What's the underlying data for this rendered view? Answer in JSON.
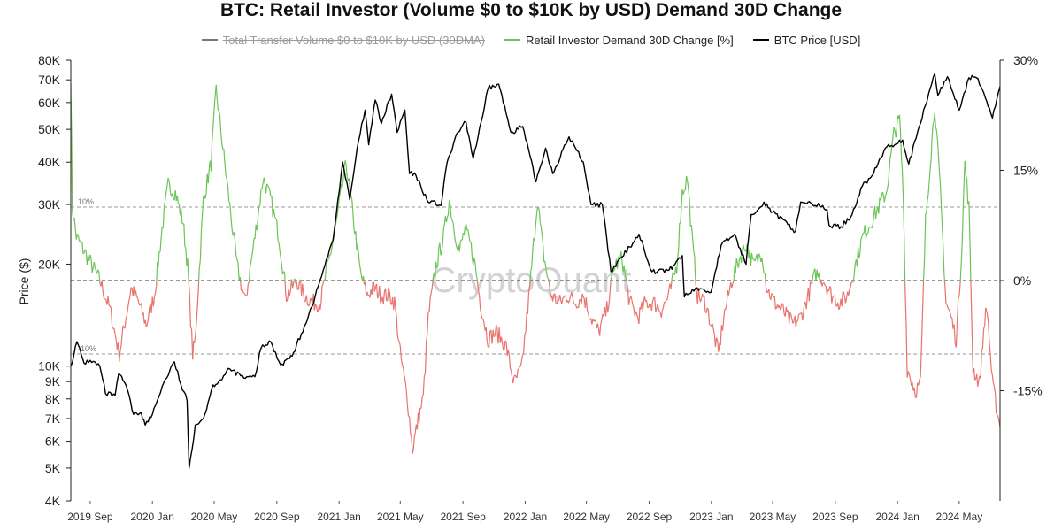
{
  "chart_data": {
    "type": "line",
    "title": "BTC: Retail Investor (Volume $0 to $10K by USD) Demand 30D Change",
    "watermark": "CryptoQuant",
    "y_left_label": "Price ($)",
    "y_left_scale": "log",
    "y_left_range": [
      4000,
      80000
    ],
    "y_left_ticks": [
      "80K",
      "70K",
      "60K",
      "50K",
      "40K",
      "30K",
      "20K",
      "10K",
      "9K",
      "8K",
      "7K",
      "6K",
      "5K",
      "4K"
    ],
    "y_left_tick_values": [
      80000,
      70000,
      60000,
      50000,
      40000,
      30000,
      20000,
      10000,
      9000,
      8000,
      7000,
      6000,
      5000,
      4000
    ],
    "y_right_range": [
      -30,
      30
    ],
    "y_right_ticks": [
      "30%",
      "15%",
      "0%",
      "-15%"
    ],
    "y_right_tick_values": [
      30,
      15,
      0,
      -15
    ],
    "reference_lines": [
      {
        "value": 10,
        "label": "10%"
      },
      {
        "value": 0,
        "label": ""
      },
      {
        "value": -10,
        "label": "-10%"
      }
    ],
    "x_range": [
      "2019-07-25",
      "2024-07-20"
    ],
    "x_ticks": [
      "2019 Sep",
      "2020 Jan",
      "2020 May",
      "2020 Sep",
      "2021 Jan",
      "2021 May",
      "2021 Sep",
      "2022 Jan",
      "2022 May",
      "2022 Sep",
      "2023 Jan",
      "2023 May",
      "2023 Sep",
      "2024 Jan",
      "2024 May"
    ],
    "x_tick_dates": [
      "2019-09-01",
      "2020-01-01",
      "2020-05-01",
      "2020-09-01",
      "2021-01-01",
      "2021-05-01",
      "2021-09-01",
      "2022-01-01",
      "2022-05-01",
      "2022-09-01",
      "2023-01-01",
      "2023-05-01",
      "2023-09-01",
      "2024-01-01",
      "2024-05-01"
    ],
    "legend_placement": "top-center",
    "legend": [
      {
        "label": "Total Transfer Volume $0 to $10K by USD (30DMA)",
        "color": "#777777",
        "disabled": true
      },
      {
        "label": "Retail Investor Demand 30D Change [%]",
        "color": "#6cc358"
      },
      {
        "label": "BTC Price [USD]",
        "color": "#000000"
      }
    ],
    "colors": {
      "positive": "#6cc358",
      "negative": "#e8736c",
      "price": "#000000"
    },
    "series": [
      {
        "name": "BTC Price [USD]",
        "axis": "left",
        "points": [
          [
            "2019-07-25",
            10000
          ],
          [
            "2019-08-06",
            11800
          ],
          [
            "2019-08-20",
            10200
          ],
          [
            "2019-09-01",
            10400
          ],
          [
            "2019-09-20",
            10000
          ],
          [
            "2019-10-01",
            8300
          ],
          [
            "2019-10-20",
            8200
          ],
          [
            "2019-10-27",
            9500
          ],
          [
            "2019-11-10",
            8800
          ],
          [
            "2019-11-25",
            7200
          ],
          [
            "2019-12-10",
            7300
          ],
          [
            "2019-12-18",
            6700
          ],
          [
            "2020-01-01",
            7200
          ],
          [
            "2020-01-20",
            8700
          ],
          [
            "2020-02-13",
            10300
          ],
          [
            "2020-02-26",
            8800
          ],
          [
            "2020-03-09",
            7900
          ],
          [
            "2020-03-13",
            5000
          ],
          [
            "2020-03-25",
            6700
          ],
          [
            "2020-04-10",
            7000
          ],
          [
            "2020-04-29",
            8800
          ],
          [
            "2020-05-10",
            9000
          ],
          [
            "2020-06-01",
            9800
          ],
          [
            "2020-07-01",
            9200
          ],
          [
            "2020-07-20",
            9300
          ],
          [
            "2020-08-01",
            11300
          ],
          [
            "2020-08-20",
            11800
          ],
          [
            "2020-09-08",
            10100
          ],
          [
            "2020-10-01",
            10700
          ],
          [
            "2020-10-25",
            13100
          ],
          [
            "2020-11-15",
            16000
          ],
          [
            "2020-12-01",
            19200
          ],
          [
            "2020-12-20",
            23500
          ],
          [
            "2021-01-08",
            40000
          ],
          [
            "2021-01-22",
            31000
          ],
          [
            "2021-02-08",
            46000
          ],
          [
            "2021-02-21",
            57000
          ],
          [
            "2021-02-28",
            45000
          ],
          [
            "2021-03-13",
            61000
          ],
          [
            "2021-03-25",
            52000
          ],
          [
            "2021-04-14",
            63500
          ],
          [
            "2021-04-25",
            49000
          ],
          [
            "2021-05-10",
            57000
          ],
          [
            "2021-05-19",
            37000
          ],
          [
            "2021-06-01",
            36500
          ],
          [
            "2021-06-22",
            31000
          ],
          [
            "2021-07-20",
            29800
          ],
          [
            "2021-08-01",
            40000
          ],
          [
            "2021-08-22",
            49000
          ],
          [
            "2021-09-07",
            52500
          ],
          [
            "2021-09-21",
            41000
          ],
          [
            "2021-10-10",
            55000
          ],
          [
            "2021-10-20",
            66000
          ],
          [
            "2021-11-10",
            68000
          ],
          [
            "2021-12-04",
            49000
          ],
          [
            "2021-12-27",
            51000
          ],
          [
            "2022-01-22",
            35000
          ],
          [
            "2022-02-10",
            44000
          ],
          [
            "2022-02-24",
            37000
          ],
          [
            "2022-03-28",
            47500
          ],
          [
            "2022-04-25",
            40000
          ],
          [
            "2022-05-10",
            30000
          ],
          [
            "2022-06-01",
            30000
          ],
          [
            "2022-06-18",
            19000
          ],
          [
            "2022-07-10",
            21000
          ],
          [
            "2022-08-12",
            24500
          ],
          [
            "2022-09-07",
            19000
          ],
          [
            "2022-10-10",
            19200
          ],
          [
            "2022-11-05",
            21200
          ],
          [
            "2022-11-09",
            16000
          ],
          [
            "2022-12-01",
            17000
          ],
          [
            "2022-12-31",
            16500
          ],
          [
            "2023-01-20",
            22700
          ],
          [
            "2023-02-15",
            24500
          ],
          [
            "2023-03-10",
            20000
          ],
          [
            "2023-03-20",
            28000
          ],
          [
            "2023-04-14",
            30500
          ],
          [
            "2023-05-01",
            28500
          ],
          [
            "2023-06-15",
            25000
          ],
          [
            "2023-06-25",
            30500
          ],
          [
            "2023-07-15",
            30300
          ],
          [
            "2023-08-16",
            29000
          ],
          [
            "2023-08-20",
            26000
          ],
          [
            "2023-09-12",
            25800
          ],
          [
            "2023-10-01",
            27500
          ],
          [
            "2023-10-24",
            34000
          ],
          [
            "2023-11-15",
            37000
          ],
          [
            "2023-12-08",
            44000
          ],
          [
            "2024-01-11",
            46500
          ],
          [
            "2024-01-23",
            39500
          ],
          [
            "2024-02-15",
            52000
          ],
          [
            "2024-03-05",
            66000
          ],
          [
            "2024-03-14",
            73000
          ],
          [
            "2024-03-20",
            63000
          ],
          [
            "2024-04-08",
            71500
          ],
          [
            "2024-05-01",
            57000
          ],
          [
            "2024-05-20",
            71000
          ],
          [
            "2024-06-07",
            70500
          ],
          [
            "2024-06-24",
            60500
          ],
          [
            "2024-07-05",
            54000
          ],
          [
            "2024-07-20",
            67000
          ]
        ]
      },
      {
        "name": "Retail Investor Demand 30D Change [%]",
        "axis": "right",
        "points": [
          [
            "2019-07-25",
            28
          ],
          [
            "2019-07-28",
            10
          ],
          [
            "2019-08-05",
            6
          ],
          [
            "2019-08-20",
            4
          ],
          [
            "2019-09-05",
            2
          ],
          [
            "2019-09-20",
            0
          ],
          [
            "2019-10-10",
            -4
          ],
          [
            "2019-10-28",
            -10
          ],
          [
            "2019-11-10",
            -5
          ],
          [
            "2019-11-20",
            -1
          ],
          [
            "2019-12-05",
            -3
          ],
          [
            "2019-12-20",
            -6
          ],
          [
            "2020-01-05",
            -2
          ],
          [
            "2020-01-20",
            7
          ],
          [
            "2020-02-01",
            13
          ],
          [
            "2020-02-15",
            12
          ],
          [
            "2020-03-01",
            8
          ],
          [
            "2020-03-10",
            2
          ],
          [
            "2020-03-20",
            -10
          ],
          [
            "2020-03-25",
            -8
          ],
          [
            "2020-04-10",
            11
          ],
          [
            "2020-04-25",
            16
          ],
          [
            "2020-05-05",
            26
          ],
          [
            "2020-05-20",
            17
          ],
          [
            "2020-06-01",
            10
          ],
          [
            "2020-06-15",
            2
          ],
          [
            "2020-07-01",
            -3
          ],
          [
            "2020-07-20",
            6
          ],
          [
            "2020-08-05",
            14
          ],
          [
            "2020-08-20",
            11
          ],
          [
            "2020-09-05",
            6
          ],
          [
            "2020-09-20",
            -2
          ],
          [
            "2020-10-10",
            0
          ],
          [
            "2020-10-25",
            -2
          ],
          [
            "2020-11-10",
            -3
          ],
          [
            "2020-11-25",
            -3
          ],
          [
            "2020-12-10",
            2
          ],
          [
            "2020-12-25",
            7
          ],
          [
            "2021-01-05",
            12
          ],
          [
            "2021-01-15",
            16
          ],
          [
            "2021-01-28",
            9
          ],
          [
            "2021-02-12",
            1
          ],
          [
            "2021-02-25",
            -2
          ],
          [
            "2021-03-10",
            -1
          ],
          [
            "2021-03-25",
            -2
          ],
          [
            "2021-04-10",
            -2
          ],
          [
            "2021-04-20",
            -3
          ],
          [
            "2021-05-01",
            -10
          ],
          [
            "2021-05-15",
            -16
          ],
          [
            "2021-05-25",
            -23
          ],
          [
            "2021-06-05",
            -19
          ],
          [
            "2021-06-15",
            -16
          ],
          [
            "2021-06-25",
            -5
          ],
          [
            "2021-07-10",
            2
          ],
          [
            "2021-07-25",
            6
          ],
          [
            "2021-08-05",
            11
          ],
          [
            "2021-08-15",
            7
          ],
          [
            "2021-08-25",
            4
          ],
          [
            "2021-09-05",
            7
          ],
          [
            "2021-09-15",
            5
          ],
          [
            "2021-09-25",
            2
          ],
          [
            "2021-10-05",
            -3
          ],
          [
            "2021-10-20",
            -8
          ],
          [
            "2021-11-05",
            -7
          ],
          [
            "2021-11-25",
            -9
          ],
          [
            "2021-12-10",
            -14
          ],
          [
            "2021-12-25",
            -12
          ],
          [
            "2022-01-10",
            -1
          ],
          [
            "2022-01-25",
            11
          ],
          [
            "2022-02-05",
            4
          ],
          [
            "2022-02-20",
            -2
          ],
          [
            "2022-03-10",
            -3
          ],
          [
            "2022-03-25",
            -2
          ],
          [
            "2022-04-10",
            -3
          ],
          [
            "2022-04-25",
            -2
          ],
          [
            "2022-05-10",
            -5
          ],
          [
            "2022-05-25",
            -7
          ],
          [
            "2022-06-10",
            -4
          ],
          [
            "2022-06-25",
            2
          ],
          [
            "2022-07-10",
            3
          ],
          [
            "2022-07-25",
            -3
          ],
          [
            "2022-08-10",
            -5
          ],
          [
            "2022-08-25",
            -3
          ],
          [
            "2022-09-10",
            -3
          ],
          [
            "2022-09-25",
            -4
          ],
          [
            "2022-10-10",
            -2
          ],
          [
            "2022-10-25",
            2
          ],
          [
            "2022-11-05",
            12
          ],
          [
            "2022-11-15",
            14
          ],
          [
            "2022-11-25",
            5
          ],
          [
            "2022-12-05",
            -2
          ],
          [
            "2022-12-20",
            -3
          ],
          [
            "2023-01-05",
            -7
          ],
          [
            "2023-01-15",
            -10
          ],
          [
            "2023-01-25",
            -5
          ],
          [
            "2023-02-10",
            0
          ],
          [
            "2023-02-25",
            3
          ],
          [
            "2023-03-10",
            5
          ],
          [
            "2023-03-25",
            2
          ],
          [
            "2023-04-10",
            4
          ],
          [
            "2023-04-20",
            -1
          ],
          [
            "2023-05-05",
            -3
          ],
          [
            "2023-05-20",
            -4
          ],
          [
            "2023-06-10",
            -6
          ],
          [
            "2023-06-25",
            -5
          ],
          [
            "2023-07-10",
            -2
          ],
          [
            "2023-07-25",
            1
          ],
          [
            "2023-08-10",
            0
          ],
          [
            "2023-08-25",
            -2
          ],
          [
            "2023-09-10",
            -3
          ],
          [
            "2023-09-25",
            -2
          ],
          [
            "2023-10-10",
            2
          ],
          [
            "2023-10-25",
            6
          ],
          [
            "2023-11-10",
            8
          ],
          [
            "2023-11-25",
            10
          ],
          [
            "2023-12-10",
            12
          ],
          [
            "2023-12-25",
            20
          ],
          [
            "2024-01-05",
            22
          ],
          [
            "2024-01-12",
            12
          ],
          [
            "2024-01-20",
            -12
          ],
          [
            "2024-02-05",
            -15
          ],
          [
            "2024-02-15",
            -14
          ],
          [
            "2024-02-25",
            8
          ],
          [
            "2024-03-05",
            16
          ],
          [
            "2024-03-14",
            24
          ],
          [
            "2024-03-25",
            12
          ],
          [
            "2024-04-05",
            -3
          ],
          [
            "2024-04-15",
            -5
          ],
          [
            "2024-04-25",
            -8
          ],
          [
            "2024-05-05",
            3
          ],
          [
            "2024-05-12",
            16
          ],
          [
            "2024-05-20",
            10
          ],
          [
            "2024-05-28",
            -12
          ],
          [
            "2024-06-10",
            -14
          ],
          [
            "2024-06-20",
            -5
          ],
          [
            "2024-06-25",
            -4
          ],
          [
            "2024-07-05",
            -14
          ],
          [
            "2024-07-20",
            -20
          ]
        ]
      }
    ]
  }
}
